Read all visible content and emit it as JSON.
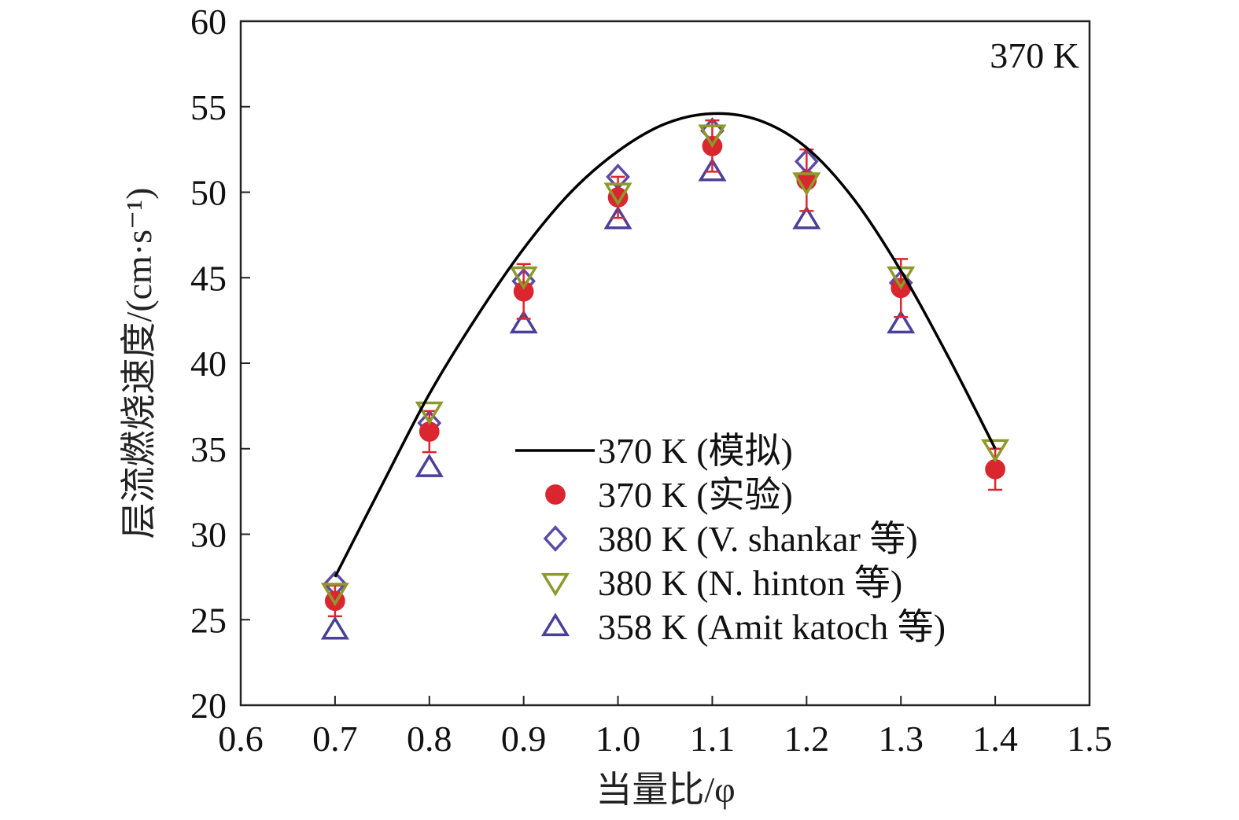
{
  "chart_data": {
    "type": "scatter",
    "annotation": "370 K",
    "xlabel": "当量比/φ",
    "ylabel": "层流燃烧速度/(cm·s⁻¹)",
    "xlim": [
      0.6,
      1.5
    ],
    "ylim": [
      20,
      60
    ],
    "x_ticks": [
      "0.6",
      "0.7",
      "0.8",
      "0.9",
      "1.0",
      "1.1",
      "1.2",
      "1.3",
      "1.4",
      "1.5"
    ],
    "y_ticks": [
      "20",
      "25",
      "30",
      "35",
      "40",
      "45",
      "50",
      "55",
      "60"
    ],
    "grid": false,
    "legend_position": "lower-center",
    "series": [
      {
        "name": "370 K (模拟)",
        "kind": "line",
        "color": "#000000",
        "x": [
          0.7,
          0.75,
          0.8,
          0.85,
          0.9,
          0.95,
          1.0,
          1.05,
          1.1,
          1.15,
          1.2,
          1.25,
          1.3,
          1.35,
          1.4
        ],
        "y": [
          27.5,
          32.9,
          38.2,
          42.7,
          46.7,
          50.0,
          52.4,
          54.0,
          54.6,
          54.2,
          52.6,
          49.6,
          45.4,
          40.4,
          35.0
        ]
      },
      {
        "name": "370 K (实验)",
        "kind": "marker",
        "marker": "filled-circle",
        "color": "#d9262f",
        "x": [
          0.7,
          0.8,
          0.9,
          1.0,
          1.1,
          1.2,
          1.3,
          1.4
        ],
        "y": [
          26.1,
          36.0,
          44.2,
          49.7,
          52.7,
          50.7,
          44.4,
          33.8
        ],
        "error": [
          0.9,
          1.2,
          1.6,
          1.2,
          1.5,
          1.8,
          1.7,
          1.2
        ]
      },
      {
        "name": "380 K (V. shankar 等)",
        "kind": "marker",
        "marker": "open-diamond",
        "color": "#5b4ba6",
        "x": [
          0.7,
          0.8,
          0.9,
          1.0,
          1.1,
          1.2,
          1.3
        ],
        "y": [
          27.1,
          36.5,
          44.8,
          50.9,
          53.6,
          51.8,
          44.7
        ]
      },
      {
        "name": "380 K (N. hinton 等)",
        "kind": "marker",
        "marker": "open-triangle-down",
        "color": "#8d9a2a",
        "x": [
          0.7,
          0.8,
          0.9,
          1.0,
          1.1,
          1.2,
          1.3,
          1.4
        ],
        "y": [
          26.6,
          37.2,
          45.1,
          50.0,
          53.4,
          50.6,
          45.1,
          35.0
        ]
      },
      {
        "name": "358 K (Amit katoch 等)",
        "kind": "marker",
        "marker": "open-triangle-up",
        "color": "#4b3f9a",
        "x": [
          0.7,
          0.8,
          0.9,
          1.0,
          1.1,
          1.2,
          1.3
        ],
        "y": [
          24.4,
          33.9,
          42.3,
          48.4,
          51.2,
          48.4,
          42.3
        ]
      }
    ]
  }
}
